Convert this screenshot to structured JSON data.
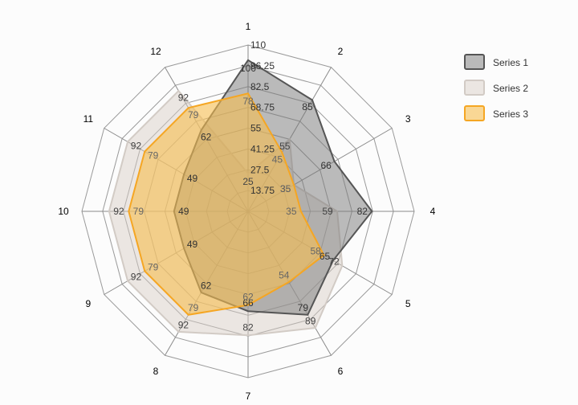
{
  "chart_data": {
    "type": "radar",
    "categories": [
      "1",
      "2",
      "3",
      "4",
      "5",
      "6",
      "7",
      "8",
      "9",
      "10",
      "11",
      "12"
    ],
    "rmax": 110,
    "ticks": [
      13.75,
      27.5,
      41.25,
      55,
      68.75,
      82.5,
      96.25,
      110
    ],
    "tick_labels": [
      "13.75",
      "27.5",
      "41.25",
      "55",
      "68.75",
      "82.5",
      "96.25",
      "110"
    ],
    "series": [
      {
        "name": "Series 1",
        "values": [
          100,
          85,
          66,
          82,
          65,
          79,
          66,
          62,
          49,
          49,
          49,
          62
        ],
        "color": "#555555",
        "fill": "rgba(120,120,120,0.5)",
        "label_color": "#333333"
      },
      {
        "name": "Series 2",
        "values": [
          25,
          55,
          35,
          59,
          72,
          89,
          82,
          92,
          92,
          92,
          92,
          92
        ],
        "color": "#d2cbc5",
        "fill": "rgba(215,205,195,0.45)",
        "label_color": "#444444"
      },
      {
        "name": "Series 3",
        "values": [
          78,
          45,
          35,
          35,
          58,
          54,
          62,
          79,
          79,
          79,
          79,
          79
        ],
        "color": "#f5a623",
        "fill": "rgba(246,190,80,0.6)",
        "label_color": "#666666"
      }
    ],
    "legend": {
      "position": "top-right"
    }
  }
}
